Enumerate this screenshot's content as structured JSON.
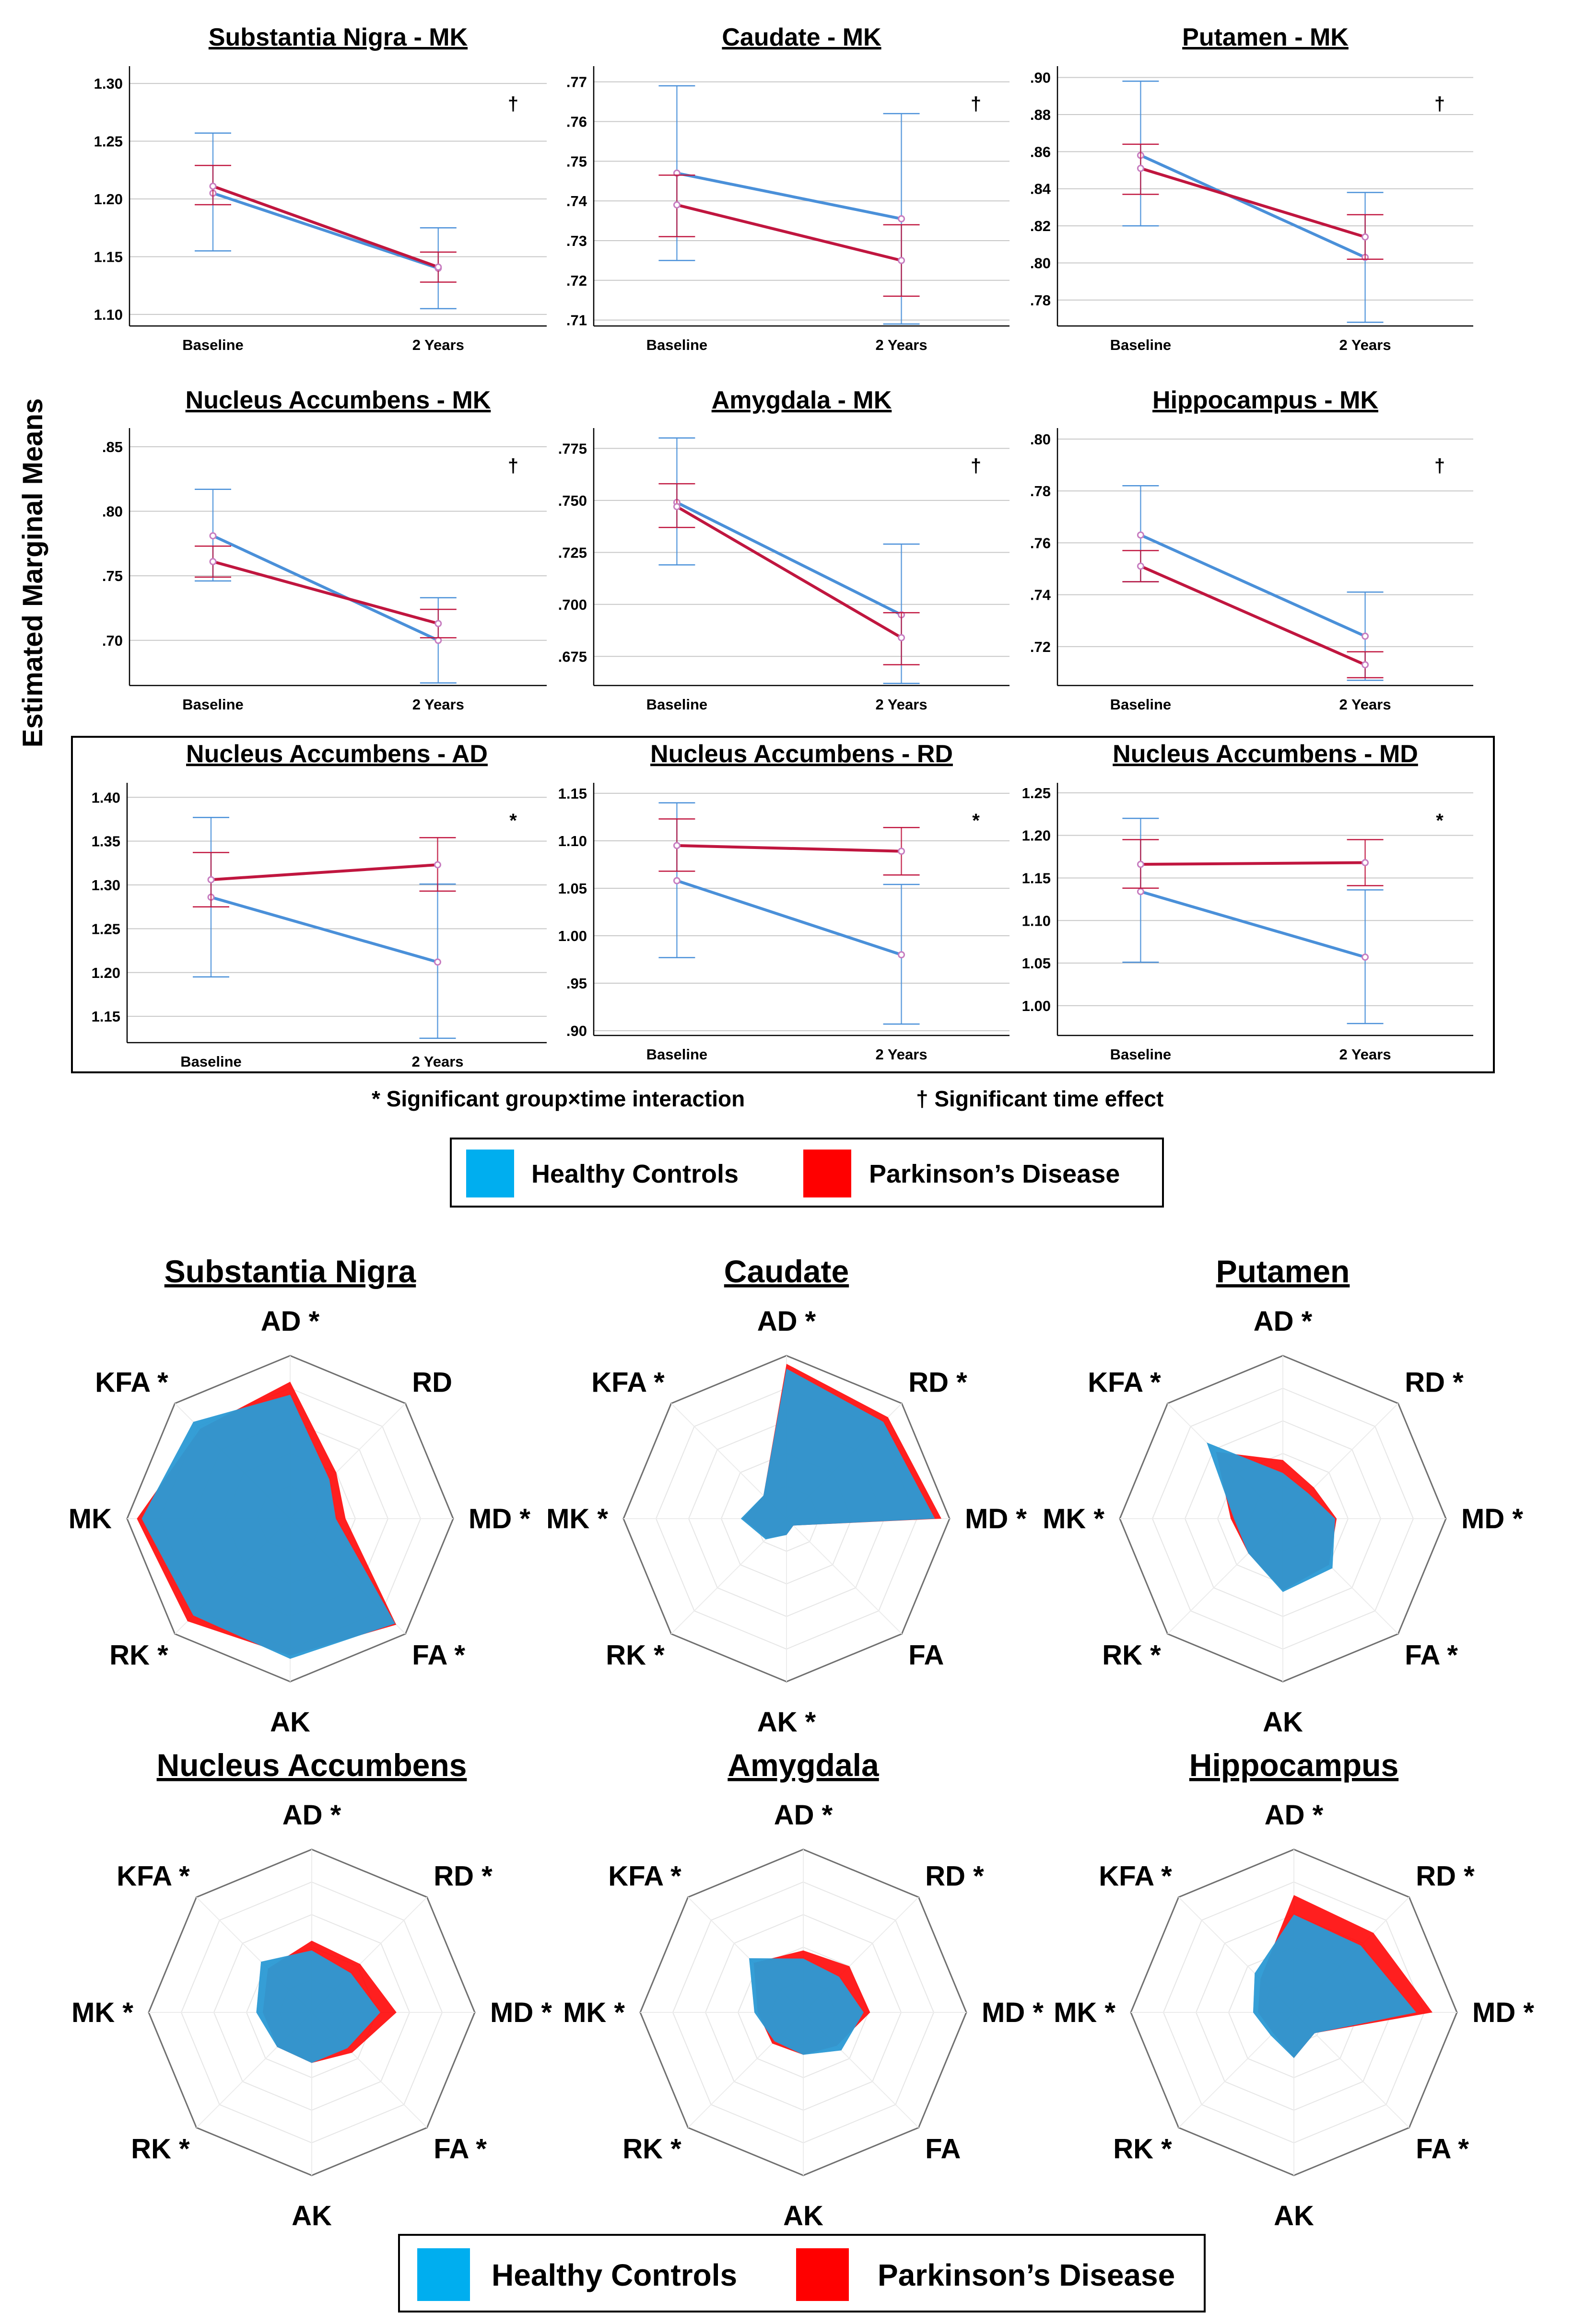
{
  "figure": {
    "ylabel": "Estimated Marginal Means",
    "notes": {
      "interaction": "* Significant group×time interaction",
      "time": "† Significant time effect"
    },
    "legend": [
      "Healthy Controls",
      "Parkinson’s Disease"
    ],
    "colors": {
      "hc_line": "#4a90d9",
      "pd_line": "#c0163f",
      "hc_fill": "#1aa7e8",
      "pd_fill": "#ff0000",
      "overlap": "#3a8fc4",
      "legend_hc": "#00aeef",
      "legend_pd": "#ff0000"
    }
  },
  "chart_data": [
    {
      "type": "line",
      "title": "Substantia Nigra - MK",
      "categories": [
        "Baseline",
        "2 Years"
      ],
      "marker": "†",
      "yticks": [
        "1.10",
        "1.15",
        "1.20",
        "1.25",
        "1.30"
      ],
      "ylim": [
        1.09,
        1.31
      ],
      "series": [
        {
          "name": "Healthy Controls",
          "values": [
            1.205,
            1.14
          ],
          "lower": [
            1.155,
            1.105
          ],
          "upper": [
            1.257,
            1.175
          ]
        },
        {
          "name": "Parkinson’s Disease",
          "values": [
            1.211,
            1.141
          ],
          "lower": [
            1.195,
            1.128
          ],
          "upper": [
            1.229,
            1.154
          ]
        }
      ]
    },
    {
      "type": "line",
      "title": "Caudate - MK",
      "categories": [
        "Baseline",
        "2 Years"
      ],
      "marker": "†",
      "yticks": [
        ".71",
        ".72",
        ".73",
        ".74",
        ".75",
        ".76",
        ".77"
      ],
      "ylim": [
        0.7085,
        0.7725
      ],
      "series": [
        {
          "name": "Healthy Controls",
          "values": [
            0.747,
            0.7355
          ],
          "lower": [
            0.725,
            0.709
          ],
          "upper": [
            0.769,
            0.762
          ]
        },
        {
          "name": "Parkinson’s Disease",
          "values": [
            0.739,
            0.725
          ],
          "lower": [
            0.731,
            0.716
          ],
          "upper": [
            0.7465,
            0.734
          ]
        }
      ]
    },
    {
      "type": "line",
      "title": "Putamen - MK",
      "categories": [
        "Baseline",
        "2 Years"
      ],
      "marker": "†",
      "yticks": [
        ".78",
        ".80",
        ".82",
        ".84",
        ".86",
        ".88",
        ".90"
      ],
      "ylim": [
        0.766,
        0.903
      ],
      "series": [
        {
          "name": "Healthy Controls",
          "values": [
            0.858,
            0.803
          ],
          "lower": [
            0.82,
            0.768
          ],
          "upper": [
            0.898,
            0.838
          ]
        },
        {
          "name": "Parkinson’s Disease",
          "values": [
            0.851,
            0.814
          ],
          "lower": [
            0.837,
            0.802
          ],
          "upper": [
            0.864,
            0.826
          ]
        }
      ]
    },
    {
      "type": "line",
      "title": "Nucleus Accumbens - MK",
      "categories": [
        "Baseline",
        "2 Years"
      ],
      "marker": "†",
      "yticks": [
        ".70",
        ".75",
        ".80",
        ".85"
      ],
      "ylim": [
        0.665,
        0.86
      ],
      "series": [
        {
          "name": "Healthy Controls",
          "values": [
            0.781,
            0.7
          ],
          "lower": [
            0.746,
            0.667
          ],
          "upper": [
            0.817,
            0.733
          ]
        },
        {
          "name": "Parkinson’s Disease",
          "values": [
            0.761,
            0.713
          ],
          "lower": [
            0.749,
            0.702
          ],
          "upper": [
            0.773,
            0.724
          ]
        }
      ]
    },
    {
      "type": "line",
      "title": "Amygdala - MK",
      "categories": [
        "Baseline",
        "2 Years"
      ],
      "marker": "†",
      "yticks": [
        ".675",
        ".700",
        ".725",
        ".750",
        ".775"
      ],
      "ylim": [
        0.661,
        0.782
      ],
      "series": [
        {
          "name": "Healthy Controls",
          "values": [
            0.749,
            0.695
          ],
          "lower": [
            0.719,
            0.662
          ],
          "upper": [
            0.78,
            0.729
          ]
        },
        {
          "name": "Parkinson’s Disease",
          "values": [
            0.747,
            0.684
          ],
          "lower": [
            0.737,
            0.671
          ],
          "upper": [
            0.758,
            0.696
          ]
        }
      ]
    },
    {
      "type": "line",
      "title": "Hippocampus - MK",
      "categories": [
        "Baseline",
        "2 Years"
      ],
      "marker": "†",
      "yticks": [
        ".72",
        ".74",
        ".76",
        ".78",
        ".80"
      ],
      "ylim": [
        0.705,
        0.802
      ],
      "series": [
        {
          "name": "Healthy Controls",
          "values": [
            0.763,
            0.724
          ],
          "lower": [
            0.745,
            0.707
          ],
          "upper": [
            0.782,
            0.741
          ]
        },
        {
          "name": "Parkinson’s Disease",
          "values": [
            0.751,
            0.713
          ],
          "lower": [
            0.745,
            0.708
          ],
          "upper": [
            0.757,
            0.718
          ]
        }
      ]
    },
    {
      "type": "line",
      "title": "Nucleus Accumbens - AD",
      "categories": [
        "Baseline",
        "2 Years"
      ],
      "marker": "*",
      "yticks": [
        "1.15",
        "1.20",
        "1.25",
        "1.30",
        "1.35",
        "1.40"
      ],
      "ylim": [
        1.12,
        1.41
      ],
      "series": [
        {
          "name": "Healthy Controls",
          "values": [
            1.286,
            1.212
          ],
          "lower": [
            1.195,
            1.125
          ],
          "upper": [
            1.377,
            1.301
          ]
        },
        {
          "name": "Parkinson’s Disease",
          "values": [
            1.306,
            1.323
          ],
          "lower": [
            1.275,
            1.293
          ],
          "upper": [
            1.337,
            1.354
          ]
        }
      ]
    },
    {
      "type": "line",
      "title": "Nucleus Accumbens - RD",
      "categories": [
        "Baseline",
        "2 Years"
      ],
      "marker": "*",
      "yticks": [
        ".90",
        ".95",
        "1.00",
        "1.05",
        "1.10",
        "1.15"
      ],
      "ylim": [
        0.895,
        1.155
      ],
      "series": [
        {
          "name": "Healthy Controls",
          "values": [
            1.058,
            0.98
          ],
          "lower": [
            0.977,
            0.907
          ],
          "upper": [
            1.14,
            1.054
          ]
        },
        {
          "name": "Parkinson’s Disease",
          "values": [
            1.095,
            1.089
          ],
          "lower": [
            1.068,
            1.064
          ],
          "upper": [
            1.123,
            1.114
          ]
        }
      ]
    },
    {
      "type": "line",
      "title": "Nucleus Accumbens - MD",
      "categories": [
        "Baseline",
        "2 Years"
      ],
      "marker": "*",
      "yticks": [
        "1.00",
        "1.05",
        "1.10",
        "1.15",
        "1.20",
        "1.25"
      ],
      "ylim": [
        0.965,
        1.255
      ],
      "series": [
        {
          "name": "Healthy Controls",
          "values": [
            1.134,
            1.057
          ],
          "lower": [
            1.051,
            0.979
          ],
          "upper": [
            1.22,
            1.136
          ]
        },
        {
          "name": "Parkinson’s Disease",
          "values": [
            1.166,
            1.168
          ],
          "lower": [
            1.138,
            1.141
          ],
          "upper": [
            1.195,
            1.195
          ]
        }
      ]
    },
    {
      "type": "radar",
      "title": "Substantia Nigra",
      "axes": [
        "AD *",
        "RD",
        "MD *",
        "FA *",
        "AK",
        "RK *",
        "MK",
        "KFA *"
      ],
      "rmax": 1,
      "series": [
        {
          "name": "Healthy Controls",
          "values": [
            0.76,
            0.34,
            0.28,
            0.91,
            0.86,
            0.84,
            0.91,
            0.84
          ]
        },
        {
          "name": "Parkinson’s Disease",
          "values": [
            0.84,
            0.4,
            0.34,
            0.92,
            0.84,
            0.89,
            0.94,
            0.78
          ]
        }
      ]
    },
    {
      "type": "radar",
      "title": "Caudate",
      "axes": [
        "AD *",
        "RD *",
        "MD *",
        "FA",
        "AK *",
        "RK *",
        "MK *",
        "KFA *"
      ],
      "rmax": 1,
      "series": [
        {
          "name": "Healthy Controls",
          "values": [
            0.92,
            0.84,
            0.91,
            0.06,
            0.1,
            0.18,
            0.28,
            0.2
          ]
        },
        {
          "name": "Parkinson’s Disease",
          "values": [
            0.95,
            0.88,
            0.95,
            0.06,
            0.1,
            0.17,
            0.27,
            0.2
          ]
        }
      ]
    },
    {
      "type": "radar",
      "title": "Putamen",
      "axes": [
        "AD *",
        "RD *",
        "MD *",
        "FA *",
        "AK",
        "RK *",
        "MK *",
        "KFA *"
      ],
      "rmax": 1,
      "series": [
        {
          "name": "Healthy Controls",
          "values": [
            0.28,
            0.22,
            0.32,
            0.43,
            0.45,
            0.3,
            0.3,
            0.66
          ]
        },
        {
          "name": "Parkinson’s Disease",
          "values": [
            0.36,
            0.27,
            0.33,
            0.4,
            0.44,
            0.3,
            0.32,
            0.58
          ]
        }
      ]
    },
    {
      "type": "radar",
      "title": "Nucleus Accumbens",
      "axes": [
        "AD *",
        "RD *",
        "MD *",
        "FA *",
        "AK",
        "RK *",
        "MK *",
        "KFA *"
      ],
      "rmax": 1,
      "series": [
        {
          "name": "Healthy Controls",
          "values": [
            0.38,
            0.34,
            0.42,
            0.31,
            0.31,
            0.3,
            0.34,
            0.44
          ]
        },
        {
          "name": "Parkinson’s Disease",
          "values": [
            0.44,
            0.42,
            0.52,
            0.35,
            0.31,
            0.3,
            0.3,
            0.38
          ]
        }
      ]
    },
    {
      "type": "radar",
      "title": "Amygdala",
      "axes": [
        "AD *",
        "RD *",
        "MD *",
        "FA",
        "AK",
        "RK *",
        "MK *",
        "KFA *"
      ],
      "rmax": 1,
      "series": [
        {
          "name": "Healthy Controls",
          "values": [
            0.33,
            0.31,
            0.37,
            0.33,
            0.26,
            0.25,
            0.3,
            0.47
          ]
        },
        {
          "name": "Parkinson’s Disease",
          "values": [
            0.38,
            0.4,
            0.41,
            0.29,
            0.26,
            0.27,
            0.28,
            0.43
          ]
        }
      ]
    },
    {
      "type": "radar",
      "title": "Hippocampus",
      "axes": [
        "AD *",
        "RD *",
        "MD *",
        "FA *",
        "AK",
        "RK *",
        "MK *",
        "KFA *"
      ],
      "rmax": 1,
      "series": [
        {
          "name": "Healthy Controls",
          "values": [
            0.6,
            0.58,
            0.75,
            0.18,
            0.28,
            0.2,
            0.25,
            0.34
          ]
        },
        {
          "name": "Parkinson’s Disease",
          "values": [
            0.72,
            0.69,
            0.85,
            0.18,
            0.28,
            0.18,
            0.22,
            0.29
          ]
        }
      ]
    }
  ]
}
